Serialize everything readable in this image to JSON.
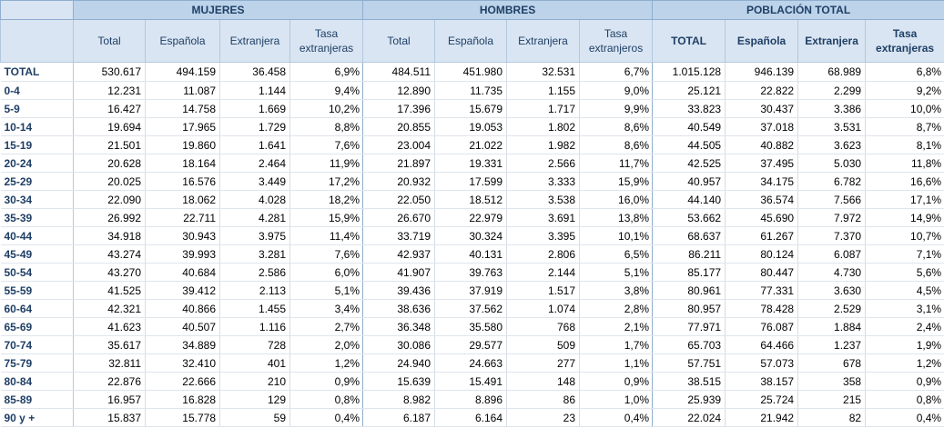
{
  "groups": [
    "MUJERES",
    "HOMBRES",
    "POBLACIÓN TOTAL"
  ],
  "subheaders": {
    "mujeres": [
      "Total",
      "Española",
      "Extranjera",
      "Tasa extranjeras"
    ],
    "hombres": [
      "Total",
      "Española",
      "Extranjera",
      "Tasa extranjeros"
    ],
    "total": [
      "TOTAL",
      "Española",
      "Extranjera",
      "Tasa extranjeras"
    ]
  },
  "rows": [
    {
      "label": "TOTAL",
      "m": [
        "530.617",
        "494.159",
        "36.458",
        "6,9%"
      ],
      "h": [
        "484.511",
        "451.980",
        "32.531",
        "6,7%"
      ],
      "t": [
        "1.015.128",
        "946.139",
        "68.989",
        "6,8%"
      ]
    },
    {
      "label": "0-4",
      "m": [
        "12.231",
        "11.087",
        "1.144",
        "9,4%"
      ],
      "h": [
        "12.890",
        "11.735",
        "1.155",
        "9,0%"
      ],
      "t": [
        "25.121",
        "22.822",
        "2.299",
        "9,2%"
      ]
    },
    {
      "label": " 5-9",
      "m": [
        "16.427",
        "14.758",
        "1.669",
        "10,2%"
      ],
      "h": [
        "17.396",
        "15.679",
        "1.717",
        "9,9%"
      ],
      "t": [
        "33.823",
        "30.437",
        "3.386",
        "10,0%"
      ]
    },
    {
      "label": " 10-14",
      "m": [
        "19.694",
        "17.965",
        "1.729",
        "8,8%"
      ],
      "h": [
        "20.855",
        "19.053",
        "1.802",
        "8,6%"
      ],
      "t": [
        "40.549",
        "37.018",
        "3.531",
        "8,7%"
      ]
    },
    {
      "label": "15-19",
      "m": [
        "21.501",
        "19.860",
        "1.641",
        "7,6%"
      ],
      "h": [
        "23.004",
        "21.022",
        "1.982",
        "8,6%"
      ],
      "t": [
        "44.505",
        "40.882",
        "3.623",
        "8,1%"
      ]
    },
    {
      "label": "20-24",
      "m": [
        "20.628",
        "18.164",
        "2.464",
        "11,9%"
      ],
      "h": [
        "21.897",
        "19.331",
        "2.566",
        "11,7%"
      ],
      "t": [
        "42.525",
        "37.495",
        "5.030",
        "11,8%"
      ]
    },
    {
      "label": "25-29",
      "m": [
        "20.025",
        "16.576",
        "3.449",
        "17,2%"
      ],
      "h": [
        "20.932",
        "17.599",
        "3.333",
        "15,9%"
      ],
      "t": [
        "40.957",
        "34.175",
        "6.782",
        "16,6%"
      ]
    },
    {
      "label": "30-34",
      "m": [
        "22.090",
        "18.062",
        "4.028",
        "18,2%"
      ],
      "h": [
        "22.050",
        "18.512",
        "3.538",
        "16,0%"
      ],
      "t": [
        "44.140",
        "36.574",
        "7.566",
        "17,1%"
      ]
    },
    {
      "label": "35-39",
      "m": [
        "26.992",
        "22.711",
        "4.281",
        "15,9%"
      ],
      "h": [
        "26.670",
        "22.979",
        "3.691",
        "13,8%"
      ],
      "t": [
        "53.662",
        "45.690",
        "7.972",
        "14,9%"
      ]
    },
    {
      "label": "40-44",
      "m": [
        "34.918",
        "30.943",
        "3.975",
        "11,4%"
      ],
      "h": [
        "33.719",
        "30.324",
        "3.395",
        "10,1%"
      ],
      "t": [
        "68.637",
        "61.267",
        "7.370",
        "10,7%"
      ]
    },
    {
      "label": "45-49",
      "m": [
        "43.274",
        "39.993",
        "3.281",
        "7,6%"
      ],
      "h": [
        "42.937",
        "40.131",
        "2.806",
        "6,5%"
      ],
      "t": [
        "86.211",
        "80.124",
        "6.087",
        "7,1%"
      ]
    },
    {
      "label": "50-54",
      "m": [
        "43.270",
        "40.684",
        "2.586",
        "6,0%"
      ],
      "h": [
        "41.907",
        "39.763",
        "2.144",
        "5,1%"
      ],
      "t": [
        "85.177",
        "80.447",
        "4.730",
        "5,6%"
      ]
    },
    {
      "label": "55-59",
      "m": [
        "41.525",
        "39.412",
        "2.113",
        "5,1%"
      ],
      "h": [
        "39.436",
        "37.919",
        "1.517",
        "3,8%"
      ],
      "t": [
        "80.961",
        "77.331",
        "3.630",
        "4,5%"
      ]
    },
    {
      "label": "60-64",
      "m": [
        "42.321",
        "40.866",
        "1.455",
        "3,4%"
      ],
      "h": [
        "38.636",
        "37.562",
        "1.074",
        "2,8%"
      ],
      "t": [
        "80.957",
        "78.428",
        "2.529",
        "3,1%"
      ]
    },
    {
      "label": "65-69",
      "m": [
        "41.623",
        "40.507",
        "1.116",
        "2,7%"
      ],
      "h": [
        "36.348",
        "35.580",
        "768",
        "2,1%"
      ],
      "t": [
        "77.971",
        "76.087",
        "1.884",
        "2,4%"
      ]
    },
    {
      "label": "70-74",
      "m": [
        "35.617",
        "34.889",
        "728",
        "2,0%"
      ],
      "h": [
        "30.086",
        "29.577",
        "509",
        "1,7%"
      ],
      "t": [
        "65.703",
        "64.466",
        "1.237",
        "1,9%"
      ]
    },
    {
      "label": "75-79",
      "m": [
        "32.811",
        "32.410",
        "401",
        "1,2%"
      ],
      "h": [
        "24.940",
        "24.663",
        "277",
        "1,1%"
      ],
      "t": [
        "57.751",
        "57.073",
        "678",
        "1,2%"
      ]
    },
    {
      "label": "80-84",
      "m": [
        "22.876",
        "22.666",
        "210",
        "0,9%"
      ],
      "h": [
        "15.639",
        "15.491",
        "148",
        "0,9%"
      ],
      "t": [
        "38.515",
        "38.157",
        "358",
        "0,9%"
      ]
    },
    {
      "label": "85-89",
      "m": [
        "16.957",
        "16.828",
        "129",
        "0,8%"
      ],
      "h": [
        "8.982",
        "8.896",
        "86",
        "1,0%"
      ],
      "t": [
        "25.939",
        "25.724",
        "215",
        "0,8%"
      ]
    },
    {
      "label": "90 y +",
      "m": [
        "15.837",
        "15.778",
        "59",
        "0,4%"
      ],
      "h": [
        "6.187",
        "6.164",
        "23",
        "0,4%"
      ],
      "t": [
        "22.024",
        "21.942",
        "82",
        "0,4%"
      ]
    }
  ]
}
